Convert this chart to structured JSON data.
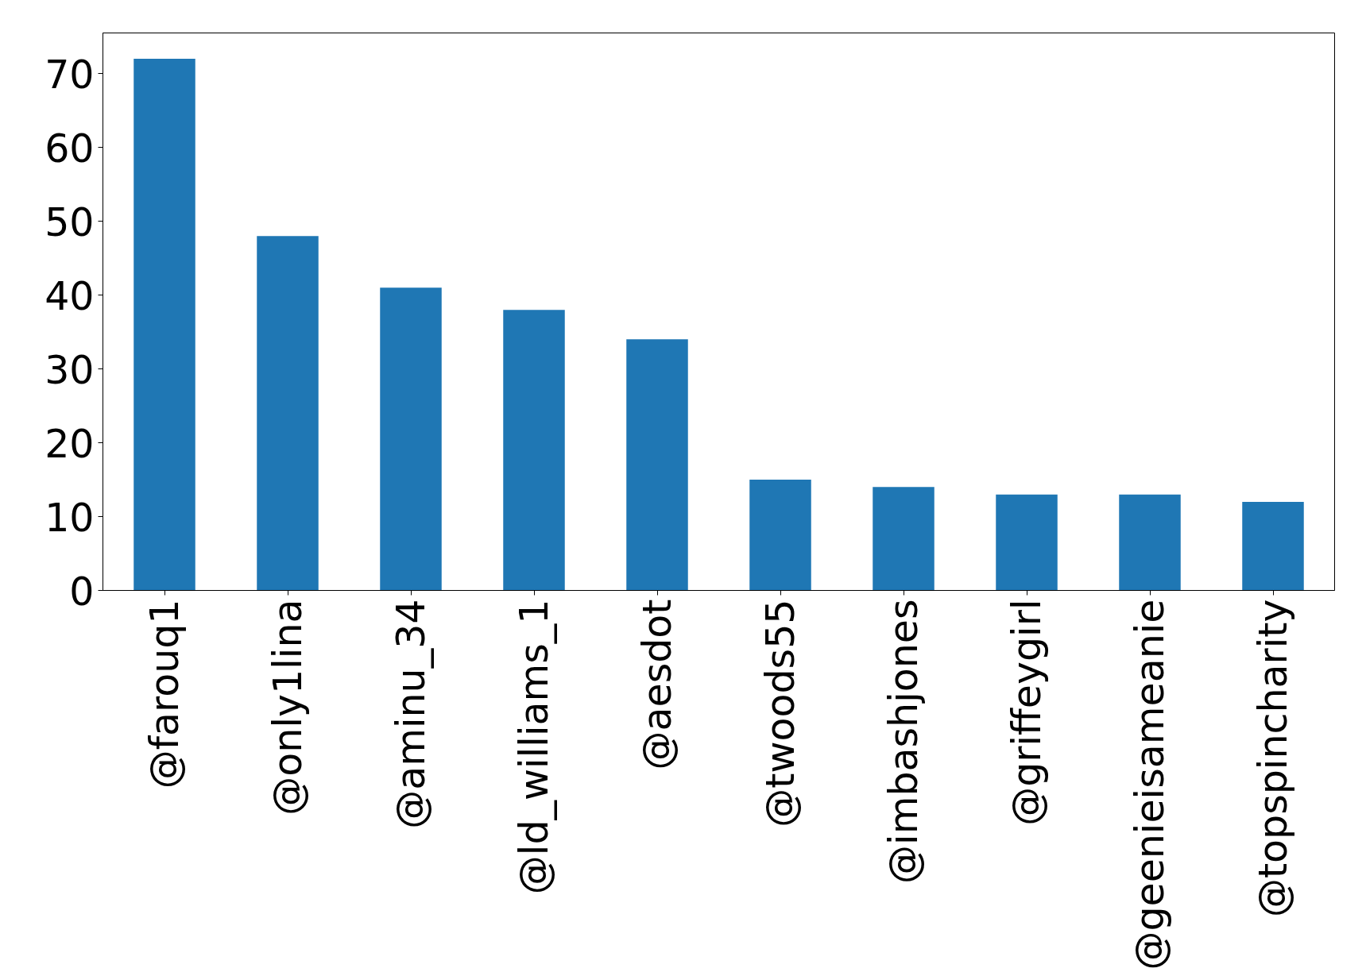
{
  "chart_data": {
    "type": "bar",
    "categories": [
      "@farouq1",
      "@only1lina",
      "@aminu_34",
      "@ld_williams_1",
      "@aesdot",
      "@twoods55",
      "@imbashjones",
      "@griffeygirl",
      "@geenieisameanie",
      "@topspincharity"
    ],
    "values": [
      72,
      48,
      41,
      38,
      34,
      15,
      14,
      13,
      13,
      12
    ],
    "color": "#1f77b4",
    "ylim": [
      0,
      75.5
    ],
    "yticks": [
      0,
      10,
      20,
      30,
      40,
      50,
      60,
      70
    ],
    "grid": false
  }
}
